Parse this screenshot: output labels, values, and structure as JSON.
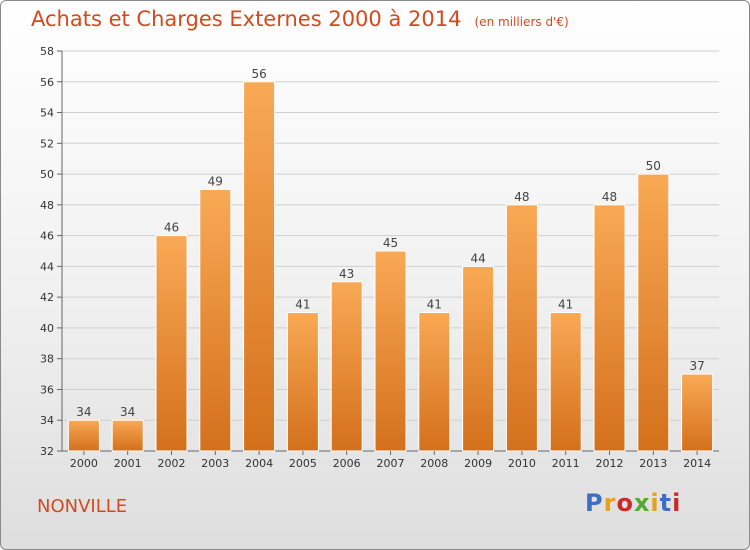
{
  "title": "Achats et Charges Externes 2000 à 2014",
  "subtitle": "(en milliers d'€)",
  "town": "NONVILLE",
  "logo": {
    "text": "Proxiti",
    "letter_colors": [
      "#3b6fc4",
      "#e8a11a",
      "#cc2a2a",
      "#55a832",
      "#e8a11a",
      "#3b6fc4",
      "#cc2a2a"
    ]
  },
  "colors": {
    "bar_top": "#f9a955",
    "bar_bottom": "#d4701c",
    "bar_stroke": "#ffffff",
    "grid": "#cfcfcf"
  },
  "chart_data": {
    "type": "bar",
    "categories": [
      "2000",
      "2001",
      "2002",
      "2003",
      "2004",
      "2005",
      "2006",
      "2007",
      "2008",
      "2009",
      "2010",
      "2011",
      "2012",
      "2013",
      "2014"
    ],
    "values": [
      34,
      34,
      46,
      49,
      56,
      41,
      43,
      45,
      41,
      44,
      48,
      41,
      48,
      50,
      37
    ],
    "title": "Achats et Charges Externes 2000 à 2014",
    "xlabel": "",
    "ylabel": "",
    "ylim": [
      32,
      58
    ],
    "yticks": [
      32,
      34,
      36,
      38,
      40,
      42,
      44,
      46,
      48,
      50,
      52,
      54,
      56,
      58
    ],
    "grid": true
  }
}
